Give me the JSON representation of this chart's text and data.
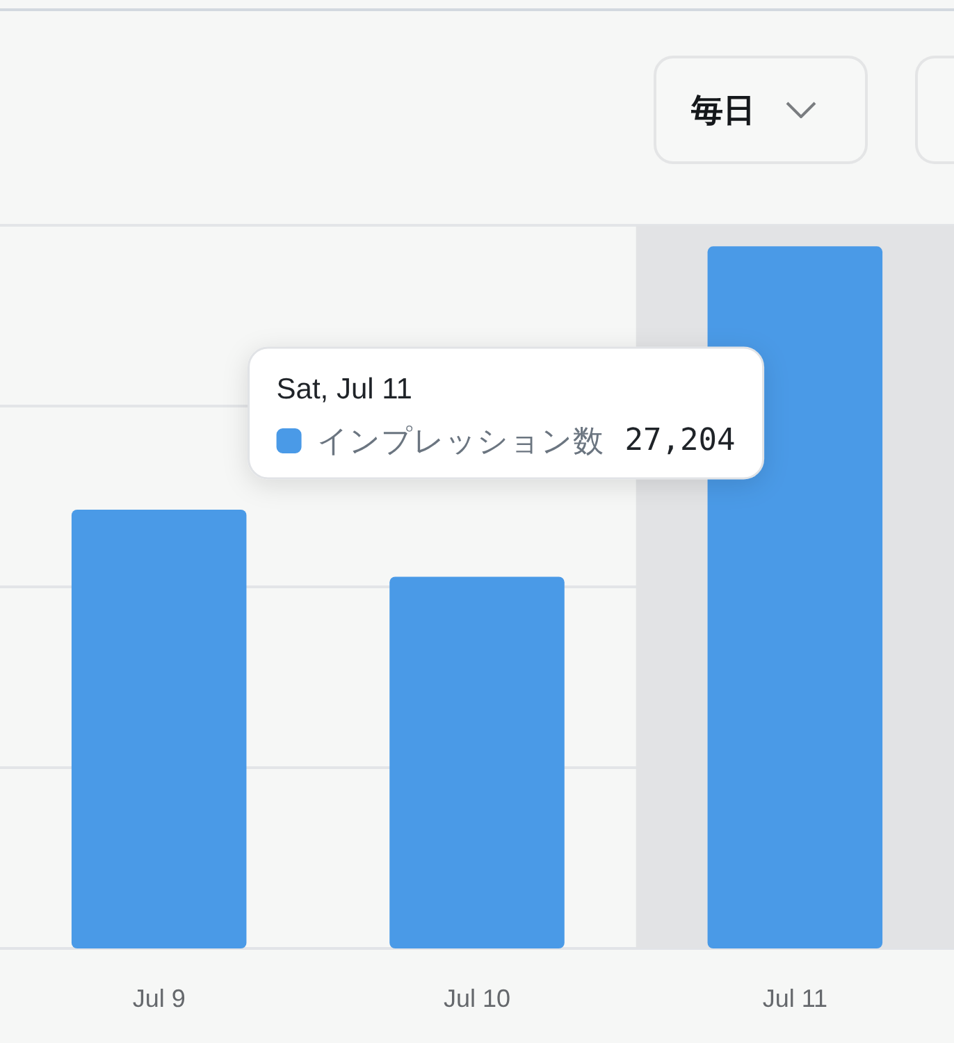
{
  "chart_data": {
    "type": "bar",
    "categories": [
      "Jul 9",
      "Jul 10",
      "Jul 11"
    ],
    "series": [
      {
        "name": "インプレッション数",
        "color": "#4a9ae7",
        "values": [
          17000,
          14400,
          27204
        ],
        "value_labels": [
          null,
          null,
          "27,204"
        ]
      }
    ],
    "grid": "y",
    "legend": "left",
    "tick_labels": "x",
    "bands": [
      {
        "axis": "x",
        "from": "Jul 11",
        "to": "Jul 11",
        "color": "#e2e3e5"
      }
    ],
    "annotations": [
      "毎日",
      "Sat, Jul 11"
    ]
  }
}
